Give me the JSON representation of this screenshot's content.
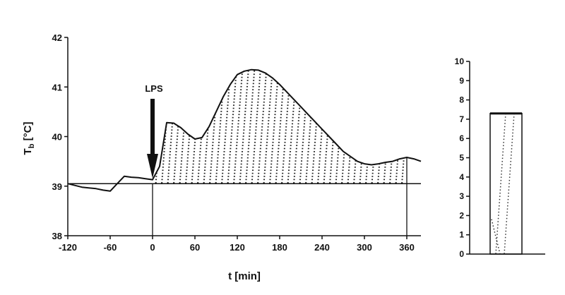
{
  "chart_data": [
    {
      "type": "line",
      "ylabel_main": "T",
      "ylabel_sub": "b",
      "ylabel_unit": " [°C]",
      "xlabel": "t [min]",
      "xlim": [
        -120,
        380
      ],
      "ylim": [
        38,
        42
      ],
      "xticks": [
        -120,
        -60,
        0,
        60,
        120,
        180,
        240,
        300,
        360
      ],
      "yticks": [
        38,
        39,
        40,
        41,
        42
      ],
      "baseline": 39.05,
      "shade_from": 0,
      "shade_to": 360,
      "annotation": {
        "label": "LPS",
        "x": 0
      },
      "x": [
        -120,
        -100,
        -80,
        -70,
        -60,
        -50,
        -40,
        -30,
        -20,
        -10,
        0,
        10,
        20,
        30,
        40,
        50,
        60,
        70,
        80,
        90,
        100,
        110,
        120,
        130,
        140,
        150,
        160,
        170,
        180,
        190,
        200,
        210,
        220,
        230,
        240,
        250,
        260,
        270,
        280,
        290,
        300,
        310,
        320,
        330,
        340,
        350,
        360,
        370,
        380
      ],
      "y": [
        39.05,
        38.98,
        38.95,
        38.92,
        38.9,
        39.05,
        39.2,
        39.18,
        39.17,
        39.15,
        39.13,
        39.4,
        40.28,
        40.27,
        40.18,
        40.05,
        39.95,
        39.98,
        40.2,
        40.5,
        40.8,
        41.05,
        41.25,
        41.32,
        41.35,
        41.34,
        41.28,
        41.18,
        41.05,
        40.9,
        40.75,
        40.6,
        40.45,
        40.3,
        40.15,
        40.0,
        39.85,
        39.7,
        39.6,
        39.5,
        39.45,
        39.43,
        39.45,
        39.48,
        39.5,
        39.55,
        39.58,
        39.55,
        39.5
      ]
    },
    {
      "type": "bar",
      "ylim": [
        0,
        10
      ],
      "yticks": [
        0,
        1,
        2,
        3,
        4,
        5,
        6,
        7,
        8,
        9,
        10
      ],
      "values": [
        7.3
      ]
    }
  ]
}
